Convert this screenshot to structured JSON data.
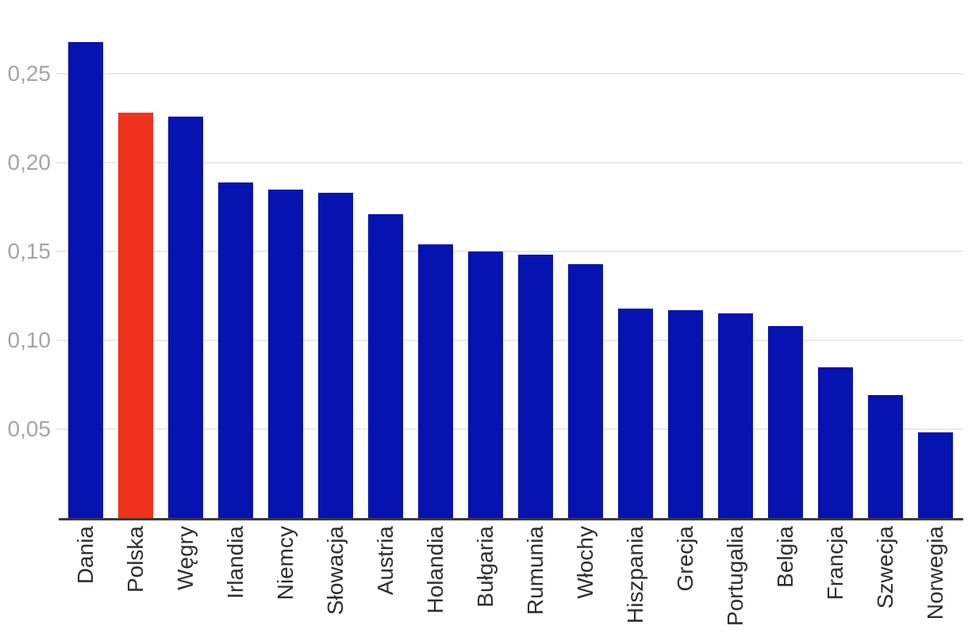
{
  "chart_data": {
    "type": "bar",
    "title": "",
    "xlabel": "",
    "ylabel": "",
    "categories": [
      "Dania",
      "Polska",
      "Węgry",
      "Irlandia",
      "Niemcy",
      "Słowacja",
      "Austria",
      "Holandia",
      "Bułgaria",
      "Rumunia",
      "Włochy",
      "Hiszpania",
      "Grecja",
      "Portugalia",
      "Belgia",
      "Francja",
      "Szwecja",
      "Norwegia"
    ],
    "values": [
      0.268,
      0.228,
      0.226,
      0.189,
      0.185,
      0.183,
      0.171,
      0.154,
      0.15,
      0.148,
      0.143,
      0.118,
      0.117,
      0.115,
      0.108,
      0.085,
      0.069,
      0.048
    ],
    "highlight_category": "Polska",
    "yticks": [
      0.05,
      0.1,
      0.15,
      0.2,
      0.25
    ],
    "ytick_labels": [
      "0,05",
      "0,10",
      "0,15",
      "0,20",
      "0,25"
    ],
    "ylim": [
      0,
      0.2915
    ],
    "grid": "horizontal",
    "legend": "none",
    "decimal_separator": ",",
    "colors": {
      "bar": "#0713b0",
      "highlight": "#f0321c",
      "gridline": "#eaeaea",
      "axis_line": "#3a3a3a",
      "ytick_text": "#a5a5a5",
      "xtick_text": "#2f2f2f",
      "background": "#ffffff"
    }
  }
}
